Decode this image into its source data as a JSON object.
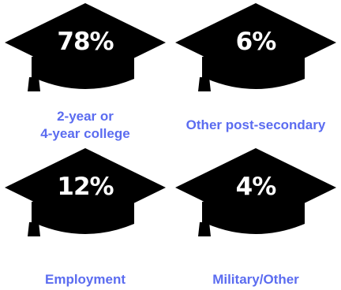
{
  "colors": {
    "cap": "#000000",
    "label": "#5b6cf0",
    "percent_text": "#ffffff"
  },
  "icons": {
    "cap": "graduation-cap-icon"
  },
  "chart_data": {
    "type": "table",
    "title": "",
    "items": [
      {
        "value": "78%",
        "label_lines": [
          "2-year or",
          "4-year college"
        ]
      },
      {
        "value": "6%",
        "label_lines": [
          "Other post-secondary"
        ]
      },
      {
        "value": "12%",
        "label_lines": [
          "Employment"
        ]
      },
      {
        "value": "4%",
        "label_lines": [
          "Military/Other"
        ]
      }
    ]
  }
}
